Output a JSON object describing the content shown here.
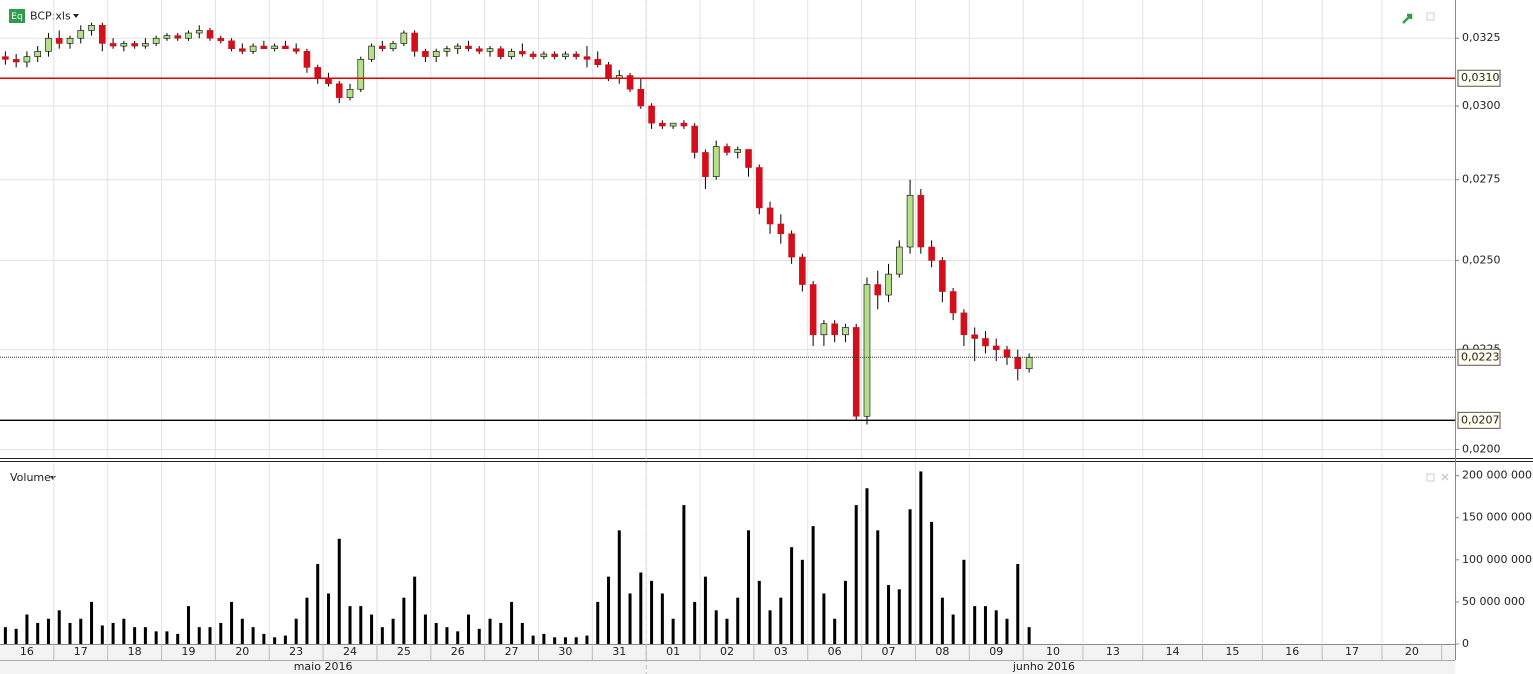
{
  "chart_data": {
    "type": "candlestick",
    "symbol_badge": "Eq",
    "title": "BCP:xls",
    "volume_title": "Volume",
    "log_scale": true,
    "grid": true,
    "up_color": "#b6df8a",
    "down_color": "#d40f1b",
    "volume_color": "#000000",
    "ylim": [
      0.0198,
      0.034
    ],
    "yticks": [
      {
        "value": 0.0325,
        "label": "0,0325"
      },
      {
        "value": 0.03,
        "label": "0,0300"
      },
      {
        "value": 0.0275,
        "label": "0,0275"
      },
      {
        "value": 0.025,
        "label": "0,0250"
      },
      {
        "value": 0.0225,
        "label": "0,0225"
      },
      {
        "value": 0.02,
        "label": "0,0200"
      }
    ],
    "levels": [
      {
        "value": 0.031,
        "label": "0,0310",
        "color": "#e00000",
        "style": "solid"
      },
      {
        "value": 0.0223,
        "label": "0,0223",
        "color": "#333333",
        "style": "dotted"
      },
      {
        "value": 0.0207,
        "label": "0,0207",
        "color": "#000000",
        "style": "solid"
      }
    ],
    "volume_ylim": [
      0,
      215000000
    ],
    "volume_yticks": [
      0,
      {
        "value": 50000000,
        "label": "50 000 000"
      },
      {
        "value": 100000000,
        "label": "100 000 000"
      },
      {
        "value": 150000000,
        "label": "150 000 000"
      },
      {
        "value": 200000000,
        "label": "200 000 000"
      }
    ],
    "months": [
      "maio 2016",
      "junho 2016"
    ],
    "days": [
      {
        "label": "16",
        "ohlc": [
          [
            0.0318,
            0.032,
            0.0315,
            0.0317
          ],
          [
            0.0317,
            0.0319,
            0.0314,
            0.0316
          ],
          [
            0.0316,
            0.032,
            0.0314,
            0.0318
          ],
          [
            0.0318,
            0.0322,
            0.0316,
            0.032
          ],
          [
            0.032,
            0.0327,
            0.0318,
            0.0325
          ]
        ],
        "volume": [
          20000000,
          18000000,
          35000000,
          25000000,
          30000000
        ]
      },
      {
        "label": "17",
        "ohlc": [
          [
            0.0325,
            0.0328,
            0.0321,
            0.0323
          ],
          [
            0.0323,
            0.0326,
            0.0321,
            0.0325
          ],
          [
            0.0325,
            0.033,
            0.0323,
            0.0328
          ],
          [
            0.0328,
            0.0331,
            0.0326,
            0.033
          ],
          [
            0.033,
            0.0331,
            0.032,
            0.0323
          ]
        ],
        "volume": [
          40000000,
          25000000,
          30000000,
          50000000,
          22000000
        ]
      },
      {
        "label": "18",
        "ohlc": [
          [
            0.0323,
            0.0325,
            0.0321,
            0.0322
          ],
          [
            0.0322,
            0.0324,
            0.032,
            0.0323
          ],
          [
            0.0323,
            0.0324,
            0.0321,
            0.0322
          ],
          [
            0.0322,
            0.0325,
            0.0321,
            0.0323
          ],
          [
            0.0323,
            0.0326,
            0.0322,
            0.0325
          ]
        ],
        "volume": [
          25000000,
          30000000,
          20000000,
          20000000,
          15000000
        ]
      },
      {
        "label": "19",
        "ohlc": [
          [
            0.0325,
            0.0327,
            0.0324,
            0.0326
          ],
          [
            0.0326,
            0.0327,
            0.0324,
            0.0325
          ],
          [
            0.0325,
            0.0328,
            0.0324,
            0.0327
          ],
          [
            0.0327,
            0.033,
            0.0325,
            0.0328
          ],
          [
            0.0328,
            0.0329,
            0.0324,
            0.0325
          ]
        ],
        "volume": [
          15000000,
          12000000,
          45000000,
          20000000,
          20000000
        ]
      },
      {
        "label": "20",
        "ohlc": [
          [
            0.0325,
            0.0326,
            0.0323,
            0.0324
          ],
          [
            0.0324,
            0.0325,
            0.032,
            0.0321
          ],
          [
            0.0321,
            0.0323,
            0.0319,
            0.032
          ],
          [
            0.032,
            0.0323,
            0.0319,
            0.0322
          ],
          [
            0.0322,
            0.0324,
            0.0321,
            0.0321
          ]
        ],
        "volume": [
          25000000,
          50000000,
          30000000,
          20000000,
          12000000
        ]
      },
      {
        "label": "23",
        "ohlc": [
          [
            0.0321,
            0.0323,
            0.032,
            0.0322
          ],
          [
            0.0322,
            0.0324,
            0.0321,
            0.0321
          ],
          [
            0.0321,
            0.0323,
            0.0319,
            0.032
          ],
          [
            0.032,
            0.0321,
            0.0312,
            0.0314
          ],
          [
            0.0314,
            0.0315,
            0.0308,
            0.031
          ]
        ],
        "volume": [
          8000000,
          10000000,
          30000000,
          55000000,
          95000000
        ]
      },
      {
        "label": "24",
        "ohlc": [
          [
            0.031,
            0.0312,
            0.0307,
            0.0308
          ],
          [
            0.0308,
            0.0309,
            0.0301,
            0.0303
          ],
          [
            0.0303,
            0.0308,
            0.0302,
            0.0306
          ],
          [
            0.0306,
            0.0318,
            0.0305,
            0.0317
          ],
          [
            0.0317,
            0.0323,
            0.0316,
            0.0322
          ]
        ],
        "volume": [
          60000000,
          125000000,
          45000000,
          45000000,
          35000000
        ]
      },
      {
        "label": "25",
        "ohlc": [
          [
            0.0322,
            0.0324,
            0.032,
            0.0321
          ],
          [
            0.0321,
            0.0324,
            0.032,
            0.0323
          ],
          [
            0.0323,
            0.0328,
            0.0322,
            0.0327
          ],
          [
            0.0327,
            0.0328,
            0.0318,
            0.032
          ],
          [
            0.032,
            0.0321,
            0.0316,
            0.0318
          ]
        ],
        "volume": [
          20000000,
          30000000,
          55000000,
          80000000,
          35000000
        ]
      },
      {
        "label": "26",
        "ohlc": [
          [
            0.0318,
            0.0321,
            0.0316,
            0.032
          ],
          [
            0.032,
            0.0322,
            0.0318,
            0.0321
          ],
          [
            0.0321,
            0.0323,
            0.0319,
            0.0322
          ],
          [
            0.0322,
            0.0324,
            0.032,
            0.0321
          ],
          [
            0.0321,
            0.0322,
            0.0319,
            0.032
          ]
        ],
        "volume": [
          25000000,
          20000000,
          15000000,
          35000000,
          18000000
        ]
      },
      {
        "label": "27",
        "ohlc": [
          [
            0.032,
            0.0322,
            0.0318,
            0.0321
          ],
          [
            0.0321,
            0.0322,
            0.0317,
            0.0318
          ],
          [
            0.0318,
            0.0321,
            0.0317,
            0.032
          ],
          [
            0.032,
            0.0323,
            0.0318,
            0.0319
          ],
          [
            0.0319,
            0.032,
            0.0317,
            0.0318
          ]
        ],
        "volume": [
          30000000,
          25000000,
          50000000,
          25000000,
          10000000
        ]
      },
      {
        "label": "30",
        "ohlc": [
          [
            0.0318,
            0.032,
            0.0317,
            0.0319
          ],
          [
            0.0319,
            0.032,
            0.0317,
            0.0318
          ],
          [
            0.0318,
            0.032,
            0.0317,
            0.0319
          ],
          [
            0.0319,
            0.032,
            0.0317,
            0.0318
          ],
          [
            0.0318,
            0.0322,
            0.0314,
            0.0317
          ]
        ],
        "volume": [
          12000000,
          8000000,
          8000000,
          8000000,
          10000000
        ]
      },
      {
        "label": "31",
        "ohlc": [
          [
            0.0317,
            0.032,
            0.0314,
            0.0315
          ],
          [
            0.0315,
            0.0316,
            0.0309,
            0.031
          ],
          [
            0.031,
            0.0313,
            0.0308,
            0.0311
          ],
          [
            0.0311,
            0.0312,
            0.0305,
            0.0306
          ],
          [
            0.0306,
            0.031,
            0.0299,
            0.03
          ]
        ],
        "volume": [
          50000000,
          80000000,
          135000000,
          60000000,
          85000000
        ]
      },
      {
        "label": "01",
        "ohlc": [
          [
            0.03,
            0.0301,
            0.0292,
            0.0294
          ],
          [
            0.0294,
            0.0295,
            0.0292,
            0.0293
          ],
          [
            0.0293,
            0.0294,
            0.0292,
            0.0294
          ],
          [
            0.0294,
            0.0295,
            0.0292,
            0.0293
          ],
          [
            0.0293,
            0.0294,
            0.0282,
            0.0284
          ]
        ],
        "volume": [
          75000000,
          60000000,
          30000000,
          165000000,
          50000000
        ]
      },
      {
        "label": "02",
        "ohlc": [
          [
            0.0284,
            0.0285,
            0.0272,
            0.0276
          ],
          [
            0.0276,
            0.0288,
            0.0275,
            0.0286
          ],
          [
            0.0286,
            0.0287,
            0.0283,
            0.0284
          ],
          [
            0.0284,
            0.0286,
            0.0282,
            0.0285
          ],
          [
            0.0285,
            0.0285,
            0.0276,
            0.0279
          ]
        ],
        "volume": [
          80000000,
          40000000,
          30000000,
          55000000,
          135000000
        ]
      },
      {
        "label": "03",
        "ohlc": [
          [
            0.0279,
            0.028,
            0.0264,
            0.0266
          ],
          [
            0.0266,
            0.0268,
            0.0258,
            0.0261
          ],
          [
            0.0261,
            0.0264,
            0.0255,
            0.0258
          ],
          [
            0.0258,
            0.0259,
            0.0249,
            0.0251
          ],
          [
            0.0251,
            0.0252,
            0.0241,
            0.0243
          ]
        ],
        "volume": [
          75000000,
          40000000,
          55000000,
          115000000,
          100000000
        ]
      },
      {
        "label": "06",
        "ohlc": [
          [
            0.0243,
            0.0244,
            0.0226,
            0.0229
          ],
          [
            0.0229,
            0.0233,
            0.0226,
            0.0232
          ],
          [
            0.0232,
            0.0233,
            0.0227,
            0.0229
          ],
          [
            0.0229,
            0.0232,
            0.0227,
            0.0231
          ],
          [
            0.0231,
            0.0232,
            0.0207,
            0.0208
          ]
        ],
        "volume": [
          140000000,
          60000000,
          30000000,
          75000000,
          165000000
        ]
      },
      {
        "label": "07",
        "ohlc": [
          [
            0.0208,
            0.0245,
            0.0206,
            0.0243
          ],
          [
            0.0243,
            0.0247,
            0.0236,
            0.024
          ],
          [
            0.024,
            0.0249,
            0.0238,
            0.0246
          ],
          [
            0.0246,
            0.0256,
            0.0245,
            0.0254
          ],
          [
            0.0254,
            0.0275,
            0.0252,
            0.027
          ]
        ],
        "volume": [
          185000000,
          135000000,
          70000000,
          65000000,
          160000000
        ]
      },
      {
        "label": "08",
        "ohlc": [
          [
            0.027,
            0.0272,
            0.0252,
            0.0254
          ],
          [
            0.0254,
            0.0256,
            0.0248,
            0.025
          ],
          [
            0.025,
            0.0251,
            0.0238,
            0.0241
          ],
          [
            0.0241,
            0.0242,
            0.0233,
            0.0235
          ],
          [
            0.0235,
            0.0236,
            0.0226,
            0.0229
          ]
        ],
        "volume": [
          205000000,
          145000000,
          55000000,
          35000000,
          100000000
        ]
      },
      {
        "label": "09",
        "ohlc": [
          [
            0.0229,
            0.0231,
            0.0222,
            0.0228
          ],
          [
            0.0228,
            0.023,
            0.0224,
            0.0226
          ],
          [
            0.0226,
            0.0228,
            0.0222,
            0.0225
          ],
          [
            0.0225,
            0.0226,
            0.0221,
            0.0223
          ],
          [
            0.0223,
            0.0225,
            0.0217,
            0.022
          ]
        ],
        "volume": [
          45000000,
          45000000,
          40000000,
          30000000,
          95000000
        ]
      },
      {
        "label": "10",
        "ohlc": [
          [
            0.022,
            0.0224,
            0.0219,
            0.0223
          ]
        ],
        "volume": [
          20000000
        ]
      },
      {
        "label": "13",
        "ohlc": [],
        "volume": []
      },
      {
        "label": "14",
        "ohlc": [],
        "volume": []
      },
      {
        "label": "15",
        "ohlc": [],
        "volume": []
      },
      {
        "label": "16",
        "ohlc": [],
        "volume": []
      },
      {
        "label": "17",
        "ohlc": [],
        "volume": []
      },
      {
        "label": "20",
        "ohlc": [],
        "volume": []
      }
    ]
  }
}
